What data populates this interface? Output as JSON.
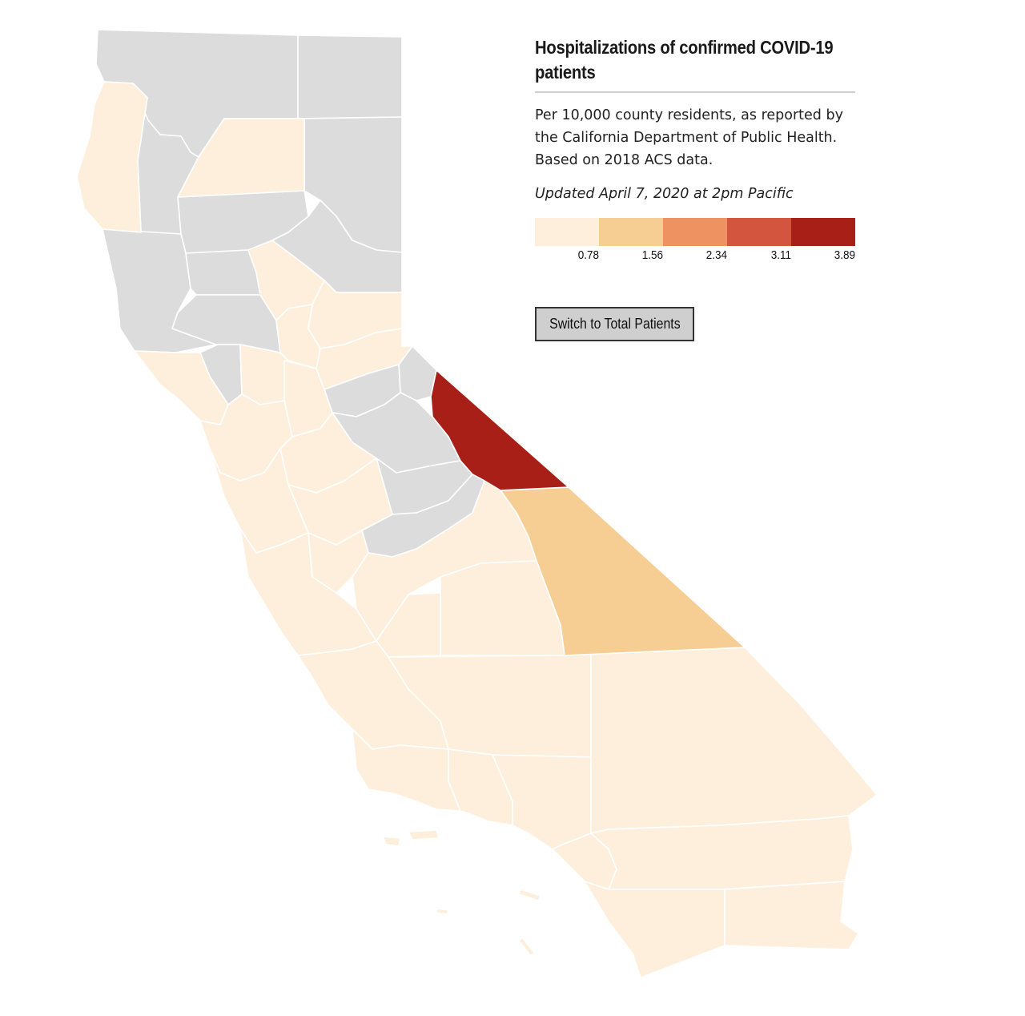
{
  "map": {
    "title": "Hospitalizations of confirmed COVID-19 patients",
    "subtitle": "Per 10,000 county residents, as reported by the California Department of Public Health. Based on 2018 ACS data.",
    "updated": "Updated April 7, 2020 at 2pm Pacific",
    "toggle_button_label": "Switch to Total Patients",
    "colors": {
      "no_data": "#dcdcdc",
      "outline": "#ffffff",
      "background": "#ffffff"
    },
    "legend": {
      "bins": [
        {
          "upper": "0.78",
          "color": "#fdefdc"
        },
        {
          "upper": "1.56",
          "color": "#f6cd93"
        },
        {
          "upper": "2.34",
          "color": "#ef9262"
        },
        {
          "upper": "3.11",
          "color": "#d4553e"
        },
        {
          "upper": "3.89",
          "color": "#a71f16"
        }
      ]
    }
  }
}
